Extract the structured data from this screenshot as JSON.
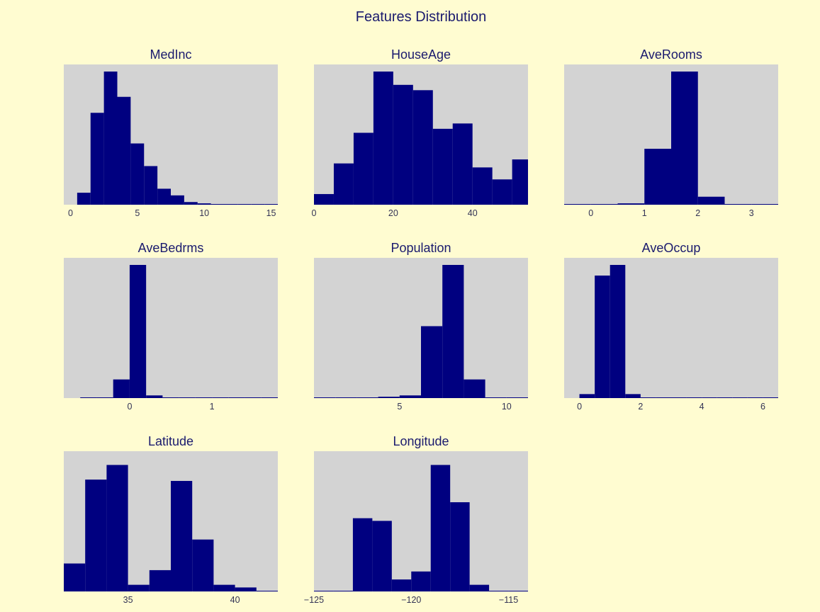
{
  "title": "Features Distribution",
  "colors": {
    "background": "#fffcd1",
    "plot_bg": "#d3d3d3",
    "bar": "#000080",
    "text": "#1a1a6e"
  },
  "chart_data": [
    {
      "type": "bar",
      "title": "MedInc",
      "xlim": [
        -0.5,
        15.5
      ],
      "bin_start": 0.5,
      "bin_width": 1.0,
      "tick_step": 5,
      "tick_values": [
        0,
        5,
        10,
        15
      ],
      "tick_labels": [
        "0",
        "5",
        "10",
        "15"
      ],
      "values": [
        0.09,
        0.69,
        1.0,
        0.81,
        0.46,
        0.29,
        0.12,
        0.07,
        0.02,
        0.01,
        0.005,
        0.002,
        0.002,
        0.002,
        0.005
      ]
    },
    {
      "type": "bar",
      "title": "HouseAge",
      "xlim": [
        0,
        54
      ],
      "bin_start": 0,
      "bin_width": 5,
      "tick_step": 20,
      "tick_values": [
        0,
        20,
        40
      ],
      "tick_labels": [
        "0",
        "20",
        "40"
      ],
      "values": [
        0.08,
        0.31,
        0.54,
        1.0,
        0.9,
        0.86,
        0.57,
        0.61,
        0.28,
        0.19,
        0.34
      ]
    },
    {
      "type": "bar",
      "title": "AveRooms",
      "xlim": [
        -0.5,
        3.5
      ],
      "bin_start": -0.5,
      "bin_width": 0.5,
      "tick_step": 1,
      "tick_values": [
        0,
        1,
        2,
        3
      ],
      "tick_labels": [
        "0",
        "1",
        "2",
        "3"
      ],
      "values": [
        0.0,
        0.002,
        0.01,
        0.42,
        1.0,
        0.06,
        0.002,
        0.002
      ]
    },
    {
      "type": "bar",
      "title": "AveBedrms",
      "xlim": [
        -0.8,
        1.8
      ],
      "bin_start": -0.6,
      "bin_width": 0.2,
      "tick_step": 1,
      "tick_values": [
        0,
        1
      ],
      "tick_labels": [
        "0",
        "1"
      ],
      "values": [
        0.002,
        0.002,
        0.14,
        1.0,
        0.02,
        0.005,
        0.002,
        0.002,
        0.002,
        0.002,
        0.002,
        0.0
      ]
    },
    {
      "type": "bar",
      "title": "Population",
      "xlim": [
        1,
        11
      ],
      "bin_start": 1,
      "bin_width": 1.0,
      "tick_step": 5,
      "tick_values": [
        5,
        10
      ],
      "tick_labels": [
        "5",
        "10"
      ],
      "values": [
        0.002,
        0.002,
        0.005,
        0.01,
        0.02,
        0.54,
        1.0,
        0.14,
        0.005,
        0.002
      ]
    },
    {
      "type": "bar",
      "title": "AveOccup",
      "xlim": [
        -0.5,
        6.5
      ],
      "bin_start": 0,
      "bin_width": 0.5,
      "tick_step": 2,
      "tick_values": [
        0,
        2,
        4,
        6
      ],
      "tick_labels": [
        "0",
        "2",
        "4",
        "6"
      ],
      "values": [
        0.03,
        0.92,
        1.0,
        0.03,
        0.002,
        0.002,
        0.002,
        0.002,
        0.002,
        0.002,
        0.002,
        0.002,
        0.002
      ]
    },
    {
      "type": "bar",
      "title": "Latitude",
      "xlim": [
        32,
        42
      ],
      "bin_start": 32,
      "bin_width": 1.0,
      "tick_step": 5,
      "tick_values": [
        35,
        40
      ],
      "tick_labels": [
        "35",
        "40"
      ],
      "values": [
        0.21,
        0.84,
        0.95,
        0.05,
        0.16,
        0.83,
        0.39,
        0.05,
        0.03,
        0.005
      ]
    },
    {
      "type": "bar",
      "title": "Longitude",
      "xlim": [
        -125,
        -114
      ],
      "bin_start": -125,
      "bin_width": 1.0,
      "tick_step": 5,
      "tick_values": [
        -125,
        -120,
        -115
      ],
      "tick_labels": [
        "−125",
        "−120",
        "−115"
      ],
      "values": [
        0.005,
        0.005,
        0.55,
        0.53,
        0.09,
        0.15,
        0.95,
        0.67,
        0.05,
        0.005,
        0.005
      ]
    }
  ]
}
